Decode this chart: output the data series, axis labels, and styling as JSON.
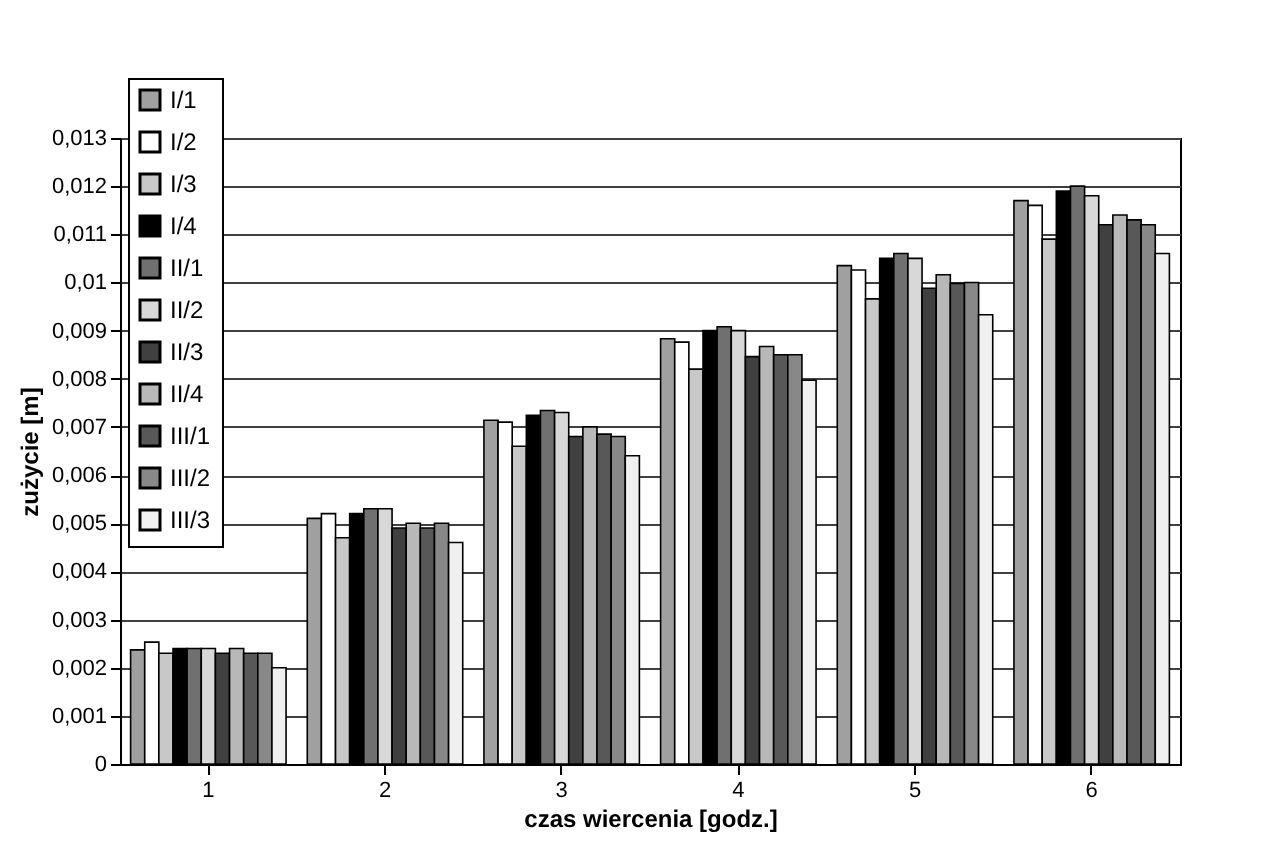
{
  "chart_data": {
    "type": "bar",
    "xlabel": "czas wiercenia [godz.]",
    "ylabel": "zużycie [m]",
    "categories": [
      "1",
      "2",
      "3",
      "4",
      "5",
      "6"
    ],
    "series": [
      {
        "name": "I/1",
        "color": "#a0a0a0",
        "values": [
          0.00237,
          0.0051,
          0.00714,
          0.00883,
          0.01035,
          0.0117
        ]
      },
      {
        "name": "I/2",
        "color": "#ffffff",
        "values": [
          0.00253,
          0.0052,
          0.0071,
          0.00876,
          0.01026,
          0.0116
        ]
      },
      {
        "name": "I/3",
        "color": "#c8c8c8",
        "values": [
          0.0023,
          0.0047,
          0.0066,
          0.0082,
          0.00966,
          0.0109
        ]
      },
      {
        "name": "I/4",
        "color": "#000000",
        "values": [
          0.0024,
          0.0052,
          0.00724,
          0.009,
          0.0105,
          0.0119
        ]
      },
      {
        "name": "II/1",
        "color": "#707070",
        "values": [
          0.0024,
          0.0053,
          0.00734,
          0.00908,
          0.0106,
          0.012
        ]
      },
      {
        "name": "II/2",
        "color": "#d8d8d8",
        "values": [
          0.0024,
          0.0053,
          0.0073,
          0.009,
          0.0105,
          0.0118
        ]
      },
      {
        "name": "II/3",
        "color": "#404040",
        "values": [
          0.0023,
          0.0049,
          0.0068,
          0.00846,
          0.00988,
          0.0112
        ]
      },
      {
        "name": "II/4",
        "color": "#b8b8b8",
        "values": [
          0.0024,
          0.005,
          0.007,
          0.00867,
          0.01016,
          0.0114
        ]
      },
      {
        "name": "III/1",
        "color": "#585858",
        "values": [
          0.0023,
          0.0049,
          0.00685,
          0.0085,
          0.00998,
          0.0113
        ]
      },
      {
        "name": "III/2",
        "color": "#888888",
        "values": [
          0.0023,
          0.005,
          0.0068,
          0.0085,
          0.01,
          0.0112
        ]
      },
      {
        "name": "III/3",
        "color": "#f0f0f0",
        "values": [
          0.002,
          0.0046,
          0.0064,
          0.00797,
          0.00933,
          0.0106
        ]
      }
    ],
    "ylim": [
      0,
      0.013
    ],
    "yticks": [
      0,
      {
        "value": 0.001,
        "label": "0,001"
      },
      {
        "value": 0.002,
        "label": "0,002"
      },
      {
        "value": 0.003,
        "label": "0,003"
      },
      {
        "value": 0.004,
        "label": "0,004"
      },
      {
        "value": 0.005,
        "label": "0,005"
      },
      {
        "value": 0.006,
        "label": "0,006"
      },
      {
        "value": 0.007,
        "label": "0,007"
      },
      {
        "value": 0.008,
        "label": "0,008"
      },
      {
        "value": 0.009,
        "label": "0,009"
      },
      {
        "value": 0.01,
        "label": "0,01"
      },
      {
        "value": 0.011,
        "label": "0,011"
      },
      {
        "value": 0.012,
        "label": "0,012"
      },
      {
        "value": 0.013,
        "label": "0,013"
      }
    ],
    "grid": "y",
    "legend": "top left"
  }
}
